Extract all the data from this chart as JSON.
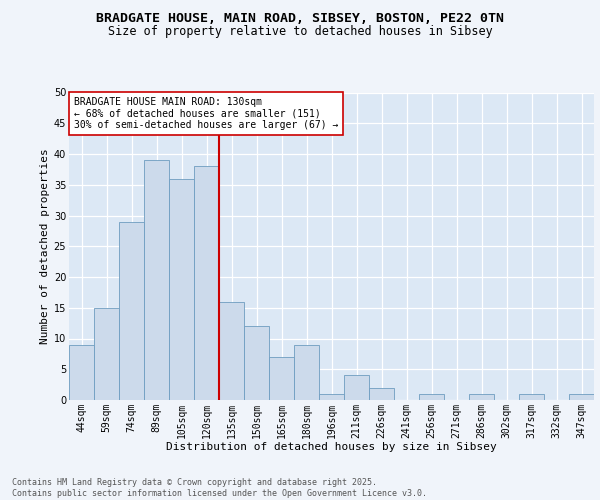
{
  "title1": "BRADGATE HOUSE, MAIN ROAD, SIBSEY, BOSTON, PE22 0TN",
  "title2": "Size of property relative to detached houses in Sibsey",
  "xlabel": "Distribution of detached houses by size in Sibsey",
  "ylabel": "Number of detached properties",
  "categories": [
    "44sqm",
    "59sqm",
    "74sqm",
    "89sqm",
    "105sqm",
    "120sqm",
    "135sqm",
    "150sqm",
    "165sqm",
    "180sqm",
    "196sqm",
    "211sqm",
    "226sqm",
    "241sqm",
    "256sqm",
    "271sqm",
    "286sqm",
    "302sqm",
    "317sqm",
    "332sqm",
    "347sqm"
  ],
  "values": [
    9,
    15,
    29,
    39,
    36,
    38,
    16,
    12,
    7,
    9,
    1,
    4,
    2,
    0,
    1,
    0,
    1,
    0,
    1,
    0,
    1
  ],
  "bar_color": "#ccdaeb",
  "bar_edge_color": "#6e9dc0",
  "background_color": "#dce8f5",
  "grid_color": "#ffffff",
  "vline_color": "#cc0000",
  "ylim": [
    0,
    50
  ],
  "yticks": [
    0,
    5,
    10,
    15,
    20,
    25,
    30,
    35,
    40,
    45,
    50
  ],
  "annotation_text": "BRADGATE HOUSE MAIN ROAD: 130sqm\n← 68% of detached houses are smaller (151)\n30% of semi-detached houses are larger (67) →",
  "annotation_box_color": "#ffffff",
  "annotation_box_edge": "#cc0000",
  "footer_text": "Contains HM Land Registry data © Crown copyright and database right 2025.\nContains public sector information licensed under the Open Government Licence v3.0.",
  "title1_fontsize": 9.5,
  "title2_fontsize": 8.5,
  "xlabel_fontsize": 8,
  "ylabel_fontsize": 8,
  "tick_fontsize": 7,
  "annotation_fontsize": 7,
  "footer_fontsize": 6
}
